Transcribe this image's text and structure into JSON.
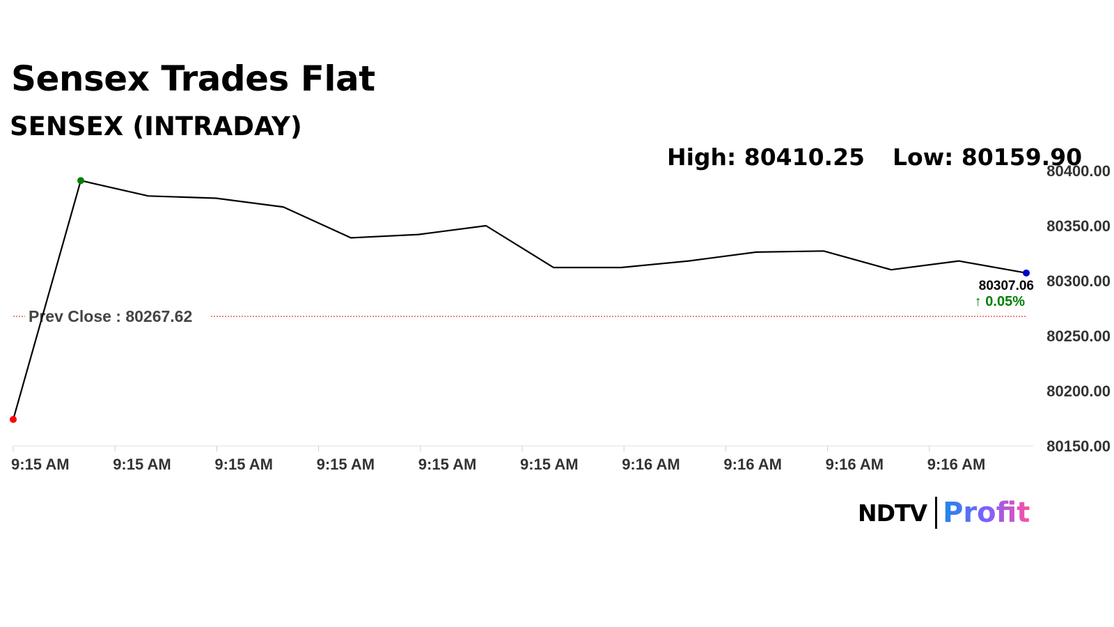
{
  "header": {
    "title": "Sensex Trades Flat",
    "subtitle": "SENSEX (INTRADAY)",
    "high": "High: 80410.25",
    "low": "Low: 80159.90"
  },
  "brand": {
    "ndtv": "NDTV",
    "profit": "Profit"
  },
  "colors": {
    "line": "#000000",
    "start_dot": "#ff0000",
    "high_dot": "#008000",
    "last_dot": "#0000cc",
    "prev_close_line": "#e53935",
    "change_positive": "#008000",
    "axis_text": "#333333"
  },
  "chart_data": {
    "type": "line",
    "title": "SENSEX (INTRADAY)",
    "x_tick_labels": [
      "9:15 AM",
      "9:15 AM",
      "9:15 AM",
      "9:15 AM",
      "9:15 AM",
      "9:15 AM",
      "9:16 AM",
      "9:16 AM",
      "9:16 AM",
      "9:16 AM"
    ],
    "y_tick_labels": [
      "80400.00",
      "80350.00",
      "80300.00",
      "80250.00",
      "80200.00",
      "80150.00"
    ],
    "ylim": [
      80150,
      80400
    ],
    "series": [
      {
        "values": [
          80174,
          80391,
          80377,
          80375,
          80367,
          80339,
          80342,
          80350,
          80312,
          80312,
          80318,
          80326,
          80327,
          80310,
          80318,
          80307.06
        ]
      }
    ],
    "prev_close": 80267.62,
    "prev_close_label": "Prev Close : 80267.62",
    "last_value_label": "80307.06",
    "change_label": "↑ 0.05%",
    "grid": false,
    "y_axis_position": "right"
  }
}
